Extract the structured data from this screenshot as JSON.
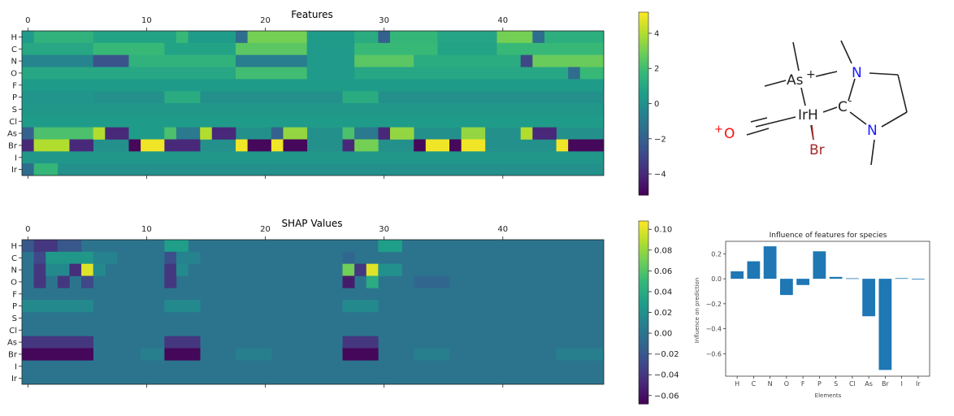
{
  "heatmap_features": {
    "title": "Features",
    "x_ticks": [
      "0",
      "10",
      "20",
      "30",
      "40"
    ],
    "rows": [
      "H",
      "C",
      "N",
      "O",
      "F",
      "P",
      "S",
      "Cl",
      "As",
      "Br",
      "I",
      "Ir"
    ],
    "colorbar": {
      "ticks": [
        "4",
        "2",
        "0",
        "−2",
        "−4"
      ],
      "vmin": -5.2,
      "vmax": 5.2
    }
  },
  "heatmap_shap": {
    "title": "SHAP Values",
    "x_ticks": [
      "0",
      "10",
      "20",
      "30",
      "40"
    ],
    "rows": [
      "H",
      "C",
      "N",
      "O",
      "F",
      "P",
      "S",
      "Cl",
      "As",
      "Br",
      "I",
      "Ir"
    ],
    "colorbar": {
      "ticks": [
        "0.10",
        "0.08",
        "0.06",
        "0.04",
        "0.02",
        "0.00",
        "−0.02",
        "−0.04",
        "−0.06"
      ],
      "vmin": -0.068,
      "vmax": 0.108
    }
  },
  "molecule": {
    "atoms": [
      "As",
      "+",
      "IrH",
      "C",
      "-",
      "N",
      "N",
      "+",
      "O",
      "Br"
    ],
    "colors": {
      "N": "#1a1aff",
      "O": "#ff0d0d",
      "Br": "#a62929",
      "bond": "#222222"
    }
  },
  "chart_data": [
    {
      "type": "heatmap",
      "title": "Features",
      "cols": 49,
      "rows": [
        "H",
        "C",
        "N",
        "O",
        "F",
        "P",
        "S",
        "Cl",
        "As",
        "Br",
        "I",
        "Ir"
      ],
      "range": [
        -5.2,
        5.2
      ],
      "cells": [
        {
          "row": "H",
          "x0": 0,
          "x1": 0,
          "v": 0.4
        },
        {
          "row": "H",
          "x0": 1,
          "x1": 5,
          "v": 1.5
        },
        {
          "row": "H",
          "x0": 6,
          "x1": 12,
          "v": 0.8
        },
        {
          "row": "H",
          "x0": 13,
          "x1": 13,
          "v": 1.8
        },
        {
          "row": "H",
          "x0": 14,
          "x1": 17,
          "v": 0.5
        },
        {
          "row": "H",
          "x0": 18,
          "x1": 18,
          "v": -1.5
        },
        {
          "row": "H",
          "x0": 19,
          "x1": 23,
          "v": 3.0
        },
        {
          "row": "H",
          "x0": 24,
          "x1": 27,
          "v": 0.5
        },
        {
          "row": "H",
          "x0": 28,
          "x1": 29,
          "v": 1.2
        },
        {
          "row": "H",
          "x0": 30,
          "x1": 30,
          "v": -2.0
        },
        {
          "row": "H",
          "x0": 31,
          "x1": 34,
          "v": 1.7
        },
        {
          "row": "H",
          "x0": 35,
          "x1": 39,
          "v": 0.9
        },
        {
          "row": "H",
          "x0": 40,
          "x1": 42,
          "v": 3.0
        },
        {
          "row": "H",
          "x0": 43,
          "x1": 43,
          "v": -1.5
        },
        {
          "row": "H",
          "x0": 44,
          "x1": 48,
          "v": 1.3
        },
        {
          "row": "C",
          "x0": 0,
          "x1": 5,
          "v": 1.0
        },
        {
          "row": "C",
          "x0": 6,
          "x1": 11,
          "v": 1.8
        },
        {
          "row": "C",
          "x0": 12,
          "x1": 17,
          "v": 0.8
        },
        {
          "row": "C",
          "x0": 18,
          "x1": 23,
          "v": 2.5
        },
        {
          "row": "C",
          "x0": 24,
          "x1": 27,
          "v": 0.4
        },
        {
          "row": "C",
          "x0": 28,
          "x1": 34,
          "v": 1.8
        },
        {
          "row": "C",
          "x0": 35,
          "x1": 39,
          "v": 0.8
        },
        {
          "row": "C",
          "x0": 40,
          "x1": 48,
          "v": 1.8
        },
        {
          "row": "N",
          "x0": 0,
          "x1": 5,
          "v": -0.5
        },
        {
          "row": "N",
          "x0": 6,
          "x1": 8,
          "v": -2.5
        },
        {
          "row": "N",
          "x0": 9,
          "x1": 17,
          "v": 1.5
        },
        {
          "row": "N",
          "x0": 18,
          "x1": 23,
          "v": -0.8
        },
        {
          "row": "N",
          "x0": 24,
          "x1": 27,
          "v": 0.4
        },
        {
          "row": "N",
          "x0": 28,
          "x1": 32,
          "v": 2.5
        },
        {
          "row": "N",
          "x0": 33,
          "x1": 41,
          "v": 1.2
        },
        {
          "row": "N",
          "x0": 42,
          "x1": 42,
          "v": -3.0
        },
        {
          "row": "N",
          "x0": 43,
          "x1": 48,
          "v": 2.8
        },
        {
          "row": "O",
          "x0": 0,
          "x1": 17,
          "v": 1.0
        },
        {
          "row": "O",
          "x0": 18,
          "x1": 23,
          "v": 2.0
        },
        {
          "row": "O",
          "x0": 24,
          "x1": 27,
          "v": 0.4
        },
        {
          "row": "O",
          "x0": 28,
          "x1": 45,
          "v": 1.0
        },
        {
          "row": "O",
          "x0": 46,
          "x1": 46,
          "v": -1.5
        },
        {
          "row": "O",
          "x0": 47,
          "x1": 48,
          "v": 1.8
        },
        {
          "row": "F",
          "x0": 0,
          "x1": 48,
          "v": 0.5
        },
        {
          "row": "P",
          "x0": 0,
          "x1": 5,
          "v": 0.2
        },
        {
          "row": "P",
          "x0": 12,
          "x1": 14,
          "v": 1.2
        },
        {
          "row": "P",
          "x0": 27,
          "x1": 29,
          "v": 1.2
        },
        {
          "row": "S",
          "x0": 0,
          "x1": 48,
          "v": 0.3
        },
        {
          "row": "Cl",
          "x0": 0,
          "x1": 48,
          "v": 0.5
        },
        {
          "row": "As",
          "x0": 0,
          "x1": 0,
          "v": -2.0
        },
        {
          "row": "As",
          "x0": 1,
          "x1": 5,
          "v": 2.2
        },
        {
          "row": "As",
          "x0": 6,
          "x1": 6,
          "v": 4.0
        },
        {
          "row": "As",
          "x0": 7,
          "x1": 8,
          "v": -4.0
        },
        {
          "row": "As",
          "x0": 9,
          "x1": 11,
          "v": 0.5
        },
        {
          "row": "As",
          "x0": 12,
          "x1": 12,
          "v": 2.2
        },
        {
          "row": "As",
          "x0": 13,
          "x1": 14,
          "v": -1.0
        },
        {
          "row": "As",
          "x0": 15,
          "x1": 15,
          "v": 4.0
        },
        {
          "row": "As",
          "x0": 16,
          "x1": 17,
          "v": -4.0
        },
        {
          "row": "As",
          "x0": 21,
          "x1": 21,
          "v": -2.0
        },
        {
          "row": "As",
          "x0": 22,
          "x1": 23,
          "v": 3.5
        },
        {
          "row": "As",
          "x0": 27,
          "x1": 27,
          "v": 2.2
        },
        {
          "row": "As",
          "x0": 28,
          "x1": 29,
          "v": -1.0
        },
        {
          "row": "As",
          "x0": 30,
          "x1": 30,
          "v": -4.0
        },
        {
          "row": "As",
          "x0": 31,
          "x1": 32,
          "v": 3.5
        },
        {
          "row": "As",
          "x0": 37,
          "x1": 38,
          "v": 3.5
        },
        {
          "row": "As",
          "x0": 42,
          "x1": 42,
          "v": 4.0
        },
        {
          "row": "As",
          "x0": 43,
          "x1": 44,
          "v": -4.0
        },
        {
          "row": "Br",
          "x0": 0,
          "x1": 0,
          "v": -4.0
        },
        {
          "row": "Br",
          "x0": 1,
          "x1": 3,
          "v": 4.0
        },
        {
          "row": "Br",
          "x0": 4,
          "x1": 5,
          "v": -4.0
        },
        {
          "row": "Br",
          "x0": 9,
          "x1": 9,
          "v": -5.0
        },
        {
          "row": "Br",
          "x0": 10,
          "x1": 11,
          "v": 5.0
        },
        {
          "row": "Br",
          "x0": 12,
          "x1": 14,
          "v": -4.0
        },
        {
          "row": "Br",
          "x0": 18,
          "x1": 18,
          "v": 5.0
        },
        {
          "row": "Br",
          "x0": 19,
          "x1": 20,
          "v": -5.0
        },
        {
          "row": "Br",
          "x0": 21,
          "x1": 21,
          "v": 5.0
        },
        {
          "row": "Br",
          "x0": 22,
          "x1": 23,
          "v": -5.0
        },
        {
          "row": "Br",
          "x0": 27,
          "x1": 27,
          "v": -4.0
        },
        {
          "row": "Br",
          "x0": 28,
          "x1": 29,
          "v": 3.0
        },
        {
          "row": "Br",
          "x0": 33,
          "x1": 33,
          "v": -5.0
        },
        {
          "row": "Br",
          "x0": 34,
          "x1": 35,
          "v": 5.0
        },
        {
          "row": "Br",
          "x0": 36,
          "x1": 36,
          "v": -5.0
        },
        {
          "row": "Br",
          "x0": 37,
          "x1": 38,
          "v": 5.0
        },
        {
          "row": "Br",
          "x0": 45,
          "x1": 45,
          "v": 5.0
        },
        {
          "row": "Br",
          "x0": 46,
          "x1": 48,
          "v": -5.0
        },
        {
          "row": "I",
          "x0": 0,
          "x1": 48,
          "v": 0.3
        },
        {
          "row": "Ir",
          "x0": 0,
          "x1": 0,
          "v": -1.5
        },
        {
          "row": "Ir",
          "x0": 1,
          "x1": 2,
          "v": 1.7
        }
      ]
    },
    {
      "type": "heatmap",
      "title": "SHAP Values",
      "cols": 49,
      "rows": [
        "H",
        "C",
        "N",
        "O",
        "F",
        "P",
        "S",
        "Cl",
        "As",
        "Br",
        "I",
        "Ir"
      ],
      "range": [
        -0.068,
        0.108
      ],
      "cells": [
        {
          "row": "H",
          "x0": 0,
          "x1": 0,
          "v": -0.02
        },
        {
          "row": "H",
          "x0": 1,
          "x1": 2,
          "v": -0.04
        },
        {
          "row": "H",
          "x0": 3,
          "x1": 4,
          "v": -0.02
        },
        {
          "row": "H",
          "x0": 12,
          "x1": 13,
          "v": 0.03
        },
        {
          "row": "H",
          "x0": 30,
          "x1": 31,
          "v": 0.03
        },
        {
          "row": "C",
          "x0": 1,
          "x1": 1,
          "v": -0.03
        },
        {
          "row": "C",
          "x0": 2,
          "x1": 5,
          "v": 0.025
        },
        {
          "row": "C",
          "x0": 6,
          "x1": 7,
          "v": 0.01
        },
        {
          "row": "C",
          "x0": 12,
          "x1": 12,
          "v": -0.025
        },
        {
          "row": "C",
          "x0": 13,
          "x1": 14,
          "v": 0.01
        },
        {
          "row": "C",
          "x0": 27,
          "x1": 27,
          "v": -0.01
        },
        {
          "row": "N",
          "x0": 1,
          "x1": 1,
          "v": -0.04
        },
        {
          "row": "N",
          "x0": 2,
          "x1": 3,
          "v": 0.015
        },
        {
          "row": "N",
          "x0": 4,
          "x1": 4,
          "v": -0.045
        },
        {
          "row": "N",
          "x0": 5,
          "x1": 5,
          "v": 0.1
        },
        {
          "row": "N",
          "x0": 6,
          "x1": 6,
          "v": 0.015
        },
        {
          "row": "N",
          "x0": 12,
          "x1": 12,
          "v": -0.04
        },
        {
          "row": "N",
          "x0": 13,
          "x1": 13,
          "v": 0.015
        },
        {
          "row": "N",
          "x0": 27,
          "x1": 27,
          "v": 0.07
        },
        {
          "row": "N",
          "x0": 28,
          "x1": 28,
          "v": -0.04
        },
        {
          "row": "N",
          "x0": 29,
          "x1": 29,
          "v": 0.1
        },
        {
          "row": "N",
          "x0": 30,
          "x1": 31,
          "v": 0.02
        },
        {
          "row": "O",
          "x0": 1,
          "x1": 1,
          "v": -0.04
        },
        {
          "row": "O",
          "x0": 3,
          "x1": 3,
          "v": -0.04
        },
        {
          "row": "O",
          "x0": 5,
          "x1": 5,
          "v": -0.03
        },
        {
          "row": "O",
          "x0": 12,
          "x1": 12,
          "v": -0.04
        },
        {
          "row": "O",
          "x0": 27,
          "x1": 27,
          "v": -0.055
        },
        {
          "row": "O",
          "x0": 29,
          "x1": 29,
          "v": 0.04
        },
        {
          "row": "O",
          "x0": 33,
          "x1": 35,
          "v": -0.01
        },
        {
          "row": "P",
          "x0": 0,
          "x1": 5,
          "v": 0.015
        },
        {
          "row": "P",
          "x0": 12,
          "x1": 14,
          "v": 0.015
        },
        {
          "row": "P",
          "x0": 27,
          "x1": 29,
          "v": 0.015
        },
        {
          "row": "As",
          "x0": 0,
          "x1": 5,
          "v": -0.04
        },
        {
          "row": "As",
          "x0": 12,
          "x1": 14,
          "v": -0.04
        },
        {
          "row": "As",
          "x0": 27,
          "x1": 29,
          "v": -0.04
        },
        {
          "row": "Br",
          "x0": 0,
          "x1": 5,
          "v": -0.065
        },
        {
          "row": "Br",
          "x0": 10,
          "x1": 11,
          "v": 0.008
        },
        {
          "row": "Br",
          "x0": 12,
          "x1": 14,
          "v": -0.065
        },
        {
          "row": "Br",
          "x0": 18,
          "x1": 20,
          "v": 0.008
        },
        {
          "row": "Br",
          "x0": 27,
          "x1": 29,
          "v": -0.065
        },
        {
          "row": "Br",
          "x0": 33,
          "x1": 35,
          "v": 0.008
        },
        {
          "row": "Br",
          "x0": 45,
          "x1": 48,
          "v": 0.008
        }
      ]
    },
    {
      "type": "bar",
      "title": "Influence of features for species",
      "xlabel": "Elements",
      "ylabel": "Influence on prediction",
      "categories": [
        "H",
        "C",
        "N",
        "O",
        "F",
        "P",
        "S",
        "Cl",
        "As",
        "Br",
        "I",
        "Ir"
      ],
      "values": [
        0.06,
        0.14,
        0.26,
        -0.13,
        -0.05,
        0.22,
        0.015,
        0.004,
        -0.3,
        -0.73,
        0.005,
        0
      ],
      "ylim": [
        -0.78,
        0.3
      ],
      "yticks": [
        "0.2",
        "0.0",
        "−0.2",
        "−0.4",
        "−0.6"
      ],
      "color": "#1f77b4"
    }
  ]
}
